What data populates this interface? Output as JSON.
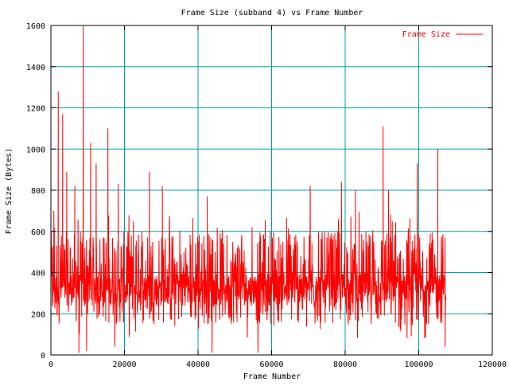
{
  "chart_data": {
    "type": "line",
    "title": "Frame Size (subband 4) vs Frame Number",
    "xlabel": "Frame Number",
    "ylabel": "Frame Size (Bytes)",
    "xlim": [
      0,
      120000
    ],
    "ylim": [
      0,
      1600
    ],
    "x_ticks": [
      0,
      20000,
      40000,
      60000,
      80000,
      100000,
      120000
    ],
    "y_ticks": [
      0,
      200,
      400,
      600,
      800,
      1000,
      1200,
      1400,
      1600
    ],
    "grid": true,
    "legend_position": "top-right",
    "series": [
      {
        "name": "Frame Size",
        "color": "#ff0000",
        "x_range": [
          0,
          107500
        ],
        "typical_band": [
          150,
          600
        ],
        "peaks": [
          {
            "x": 800,
            "y": 700
          },
          {
            "x": 2000,
            "y": 1280
          },
          {
            "x": 3200,
            "y": 1170
          },
          {
            "x": 4300,
            "y": 890
          },
          {
            "x": 6500,
            "y": 820
          },
          {
            "x": 7600,
            "y": 10
          },
          {
            "x": 8800,
            "y": 1600
          },
          {
            "x": 9700,
            "y": 20
          },
          {
            "x": 10800,
            "y": 1030
          },
          {
            "x": 12300,
            "y": 930
          },
          {
            "x": 15500,
            "y": 1100
          },
          {
            "x": 17400,
            "y": 40
          },
          {
            "x": 18300,
            "y": 830
          },
          {
            "x": 26800,
            "y": 890
          },
          {
            "x": 30300,
            "y": 820
          },
          {
            "x": 42500,
            "y": 770
          },
          {
            "x": 43800,
            "y": 10
          },
          {
            "x": 56300,
            "y": 10
          },
          {
            "x": 70500,
            "y": 820
          },
          {
            "x": 79000,
            "y": 840
          },
          {
            "x": 82800,
            "y": 800
          },
          {
            "x": 90300,
            "y": 1110
          },
          {
            "x": 91800,
            "y": 800
          },
          {
            "x": 99600,
            "y": 930
          },
          {
            "x": 105200,
            "y": 1000
          },
          {
            "x": 107200,
            "y": 40
          }
        ]
      }
    ]
  }
}
